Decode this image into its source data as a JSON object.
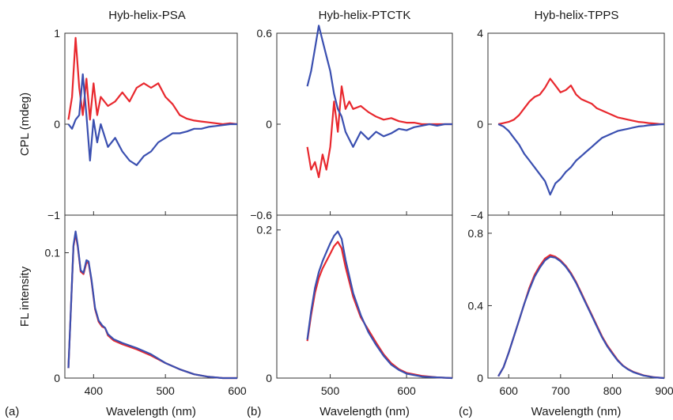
{
  "chart_data": [
    {
      "id": "a",
      "panel_label": "(a)",
      "type": "line",
      "title": "Hyb-helix-PSA",
      "xlabel": "Wavelength (nm)",
      "xlim": [
        360,
        600
      ],
      "xticks": [
        400,
        500,
        600
      ],
      "top": {
        "ylabel": "CPL (mdeg)",
        "ylim": [
          -1,
          1
        ],
        "yticks": [
          {
            "v": 1,
            "t": "1"
          },
          {
            "v": 0,
            "t": "0"
          },
          {
            "v": -1,
            "t": "−1"
          }
        ],
        "series": [
          {
            "color": "#e8282e",
            "x": [
              365,
              370,
              375,
              380,
              385,
              390,
              395,
              400,
              405,
              410,
              420,
              430,
              440,
              450,
              460,
              470,
              480,
              490,
              500,
              510,
              520,
              530,
              540,
              550,
              560,
              570,
              580,
              590,
              600
            ],
            "y": [
              0.05,
              0.3,
              0.95,
              0.4,
              0.1,
              0.5,
              0.05,
              0.45,
              0.1,
              0.3,
              0.2,
              0.25,
              0.35,
              0.25,
              0.4,
              0.45,
              0.4,
              0.45,
              0.3,
              0.22,
              0.1,
              0.06,
              0.04,
              0.03,
              0.02,
              0.01,
              0.0,
              0.01,
              0.0
            ]
          },
          {
            "color": "#3a4fb0",
            "x": [
              365,
              370,
              375,
              380,
              385,
              390,
              395,
              400,
              405,
              410,
              420,
              430,
              440,
              450,
              460,
              470,
              480,
              490,
              500,
              510,
              520,
              530,
              540,
              550,
              560,
              570,
              580,
              590,
              600
            ],
            "y": [
              0.0,
              -0.05,
              0.05,
              0.1,
              0.55,
              0.1,
              -0.4,
              0.05,
              -0.2,
              0.0,
              -0.25,
              -0.15,
              -0.3,
              -0.4,
              -0.45,
              -0.35,
              -0.3,
              -0.2,
              -0.15,
              -0.1,
              -0.1,
              -0.08,
              -0.05,
              -0.05,
              -0.03,
              -0.02,
              -0.01,
              0.0,
              0.0
            ]
          }
        ]
      },
      "bottom": {
        "ylabel": "FL intensity",
        "ylim": [
          0,
          0.13
        ],
        "yticks": [
          {
            "v": 0.1,
            "t": "0.1"
          },
          {
            "v": 0,
            "t": "0"
          }
        ],
        "series": [
          {
            "color": "#e8282e",
            "x": [
              365,
              368,
              372,
              375,
              378,
              382,
              386,
              390,
              393,
              397,
              402,
              407,
              412,
              416,
              420,
              428,
              440,
              460,
              480,
              500,
              520,
              540,
              560,
              580,
              600
            ],
            "y": [
              0.008,
              0.05,
              0.105,
              0.115,
              0.105,
              0.085,
              0.083,
              0.092,
              0.092,
              0.078,
              0.055,
              0.045,
              0.041,
              0.04,
              0.034,
              0.03,
              0.027,
              0.023,
              0.018,
              0.012,
              0.007,
              0.003,
              0.001,
              0.0,
              0.0
            ]
          },
          {
            "color": "#3a4fb0",
            "x": [
              365,
              368,
              372,
              375,
              378,
              382,
              386,
              390,
              393,
              397,
              402,
              407,
              412,
              416,
              420,
              428,
              440,
              460,
              480,
              500,
              520,
              540,
              560,
              580,
              600
            ],
            "y": [
              0.008,
              0.05,
              0.106,
              0.117,
              0.106,
              0.086,
              0.084,
              0.094,
              0.093,
              0.079,
              0.056,
              0.046,
              0.042,
              0.04,
              0.035,
              0.031,
              0.028,
              0.024,
              0.019,
              0.012,
              0.007,
              0.003,
              0.001,
              0.0,
              0.0
            ]
          }
        ]
      }
    },
    {
      "id": "b",
      "panel_label": "(b)",
      "type": "line",
      "title": "Hyb-helix-PTCTK",
      "xlabel": "Wavelength (nm)",
      "xlim": [
        430,
        660
      ],
      "xticks": [
        500,
        600
      ],
      "top": {
        "ylabel": "",
        "ylim": [
          -0.6,
          0.6
        ],
        "yticks": [
          {
            "v": 0.6,
            "t": "0.6"
          },
          {
            "v": 0,
            "t": "0"
          },
          {
            "v": -0.6,
            "t": "−0.6"
          }
        ],
        "series": [
          {
            "color": "#e8282e",
            "x": [
              470,
              475,
              480,
              485,
              490,
              495,
              500,
              505,
              510,
              515,
              520,
              525,
              530,
              540,
              550,
              560,
              570,
              580,
              590,
              600,
              610,
              620,
              630,
              640,
              650,
              660
            ],
            "y": [
              -0.15,
              -0.3,
              -0.25,
              -0.35,
              -0.2,
              -0.3,
              -0.15,
              0.15,
              -0.05,
              0.25,
              0.1,
              0.15,
              0.1,
              0.12,
              0.08,
              0.05,
              0.03,
              0.04,
              0.02,
              0.01,
              0.01,
              0.0,
              0.0,
              0.0,
              0.0,
              0.0
            ]
          },
          {
            "color": "#3a4fb0",
            "x": [
              470,
              475,
              480,
              485,
              490,
              495,
              500,
              505,
              510,
              515,
              520,
              525,
              530,
              540,
              550,
              560,
              570,
              580,
              590,
              600,
              610,
              620,
              630,
              640,
              650,
              660
            ],
            "y": [
              0.25,
              0.35,
              0.5,
              0.65,
              0.55,
              0.45,
              0.35,
              0.2,
              0.1,
              0.05,
              -0.05,
              -0.1,
              -0.15,
              -0.05,
              -0.1,
              -0.05,
              -0.08,
              -0.06,
              -0.03,
              -0.04,
              -0.02,
              -0.01,
              0.0,
              -0.01,
              0.0,
              0.0
            ]
          }
        ]
      },
      "bottom": {
        "ylabel": "",
        "ylim": [
          0,
          0.22
        ],
        "yticks": [
          {
            "v": 0.2,
            "t": "0.2"
          },
          {
            "v": 0,
            "t": "0"
          }
        ],
        "series": [
          {
            "color": "#e8282e",
            "x": [
              470,
              475,
              480,
              485,
              490,
              495,
              500,
              505,
              510,
              515,
              520,
              530,
              540,
              550,
              560,
              570,
              580,
              590,
              600,
              620,
              640,
              660
            ],
            "y": [
              0.05,
              0.085,
              0.115,
              0.135,
              0.148,
              0.158,
              0.168,
              0.178,
              0.184,
              0.175,
              0.15,
              0.11,
              0.082,
              0.065,
              0.048,
              0.032,
              0.02,
              0.012,
              0.007,
              0.003,
              0.001,
              0.0
            ]
          },
          {
            "color": "#3a4fb0",
            "x": [
              470,
              475,
              480,
              485,
              490,
              495,
              500,
              505,
              510,
              515,
              520,
              530,
              540,
              550,
              560,
              570,
              580,
              590,
              600,
              620,
              640,
              660
            ],
            "y": [
              0.052,
              0.09,
              0.122,
              0.143,
              0.158,
              0.17,
              0.182,
              0.192,
              0.198,
              0.188,
              0.16,
              0.115,
              0.085,
              0.062,
              0.045,
              0.03,
              0.018,
              0.011,
              0.006,
              0.002,
              0.001,
              0.0
            ]
          }
        ]
      }
    },
    {
      "id": "c",
      "panel_label": "(c)",
      "type": "line",
      "title": "Hyb-helix-TPPS",
      "xlabel": "Wavelength (nm)",
      "xlim": [
        560,
        900
      ],
      "xticks": [
        600,
        700,
        800,
        900
      ],
      "top": {
        "ylabel": "",
        "ylim": [
          -4,
          4
        ],
        "yticks": [
          {
            "v": 4,
            "t": "4"
          },
          {
            "v": 0,
            "t": "0"
          },
          {
            "v": -4,
            "t": "−4"
          }
        ],
        "series": [
          {
            "color": "#e8282e",
            "x": [
              580,
              590,
              600,
              610,
              620,
              630,
              640,
              650,
              660,
              670,
              680,
              690,
              700,
              710,
              720,
              730,
              740,
              750,
              760,
              770,
              780,
              790,
              800,
              810,
              820,
              830,
              840,
              850,
              860,
              870,
              880,
              890,
              900
            ],
            "y": [
              0.0,
              0.05,
              0.1,
              0.2,
              0.4,
              0.7,
              1.0,
              1.2,
              1.3,
              1.6,
              2.0,
              1.7,
              1.4,
              1.5,
              1.7,
              1.3,
              1.1,
              1.0,
              0.9,
              0.7,
              0.6,
              0.5,
              0.4,
              0.3,
              0.25,
              0.2,
              0.15,
              0.1,
              0.08,
              0.05,
              0.03,
              0.01,
              0.0
            ]
          },
          {
            "color": "#3a4fb0",
            "x": [
              580,
              590,
              600,
              610,
              620,
              630,
              640,
              650,
              660,
              670,
              680,
              690,
              700,
              710,
              720,
              730,
              740,
              750,
              760,
              770,
              780,
              790,
              800,
              810,
              820,
              830,
              840,
              850,
              860,
              870,
              880,
              890,
              900
            ],
            "y": [
              0.0,
              -0.1,
              -0.3,
              -0.6,
              -0.9,
              -1.3,
              -1.6,
              -1.9,
              -2.2,
              -2.5,
              -3.1,
              -2.6,
              -2.4,
              -2.1,
              -1.9,
              -1.6,
              -1.4,
              -1.2,
              -1.0,
              -0.8,
              -0.6,
              -0.5,
              -0.4,
              -0.3,
              -0.25,
              -0.2,
              -0.15,
              -0.1,
              -0.08,
              -0.05,
              -0.03,
              -0.01,
              0.0
            ]
          }
        ]
      },
      "bottom": {
        "ylabel": "",
        "ylim": [
          0,
          0.9
        ],
        "yticks": [
          {
            "v": 0.8,
            "t": "0.8"
          },
          {
            "v": 0.4,
            "t": "0.4"
          },
          {
            "v": 0,
            "t": "0"
          }
        ],
        "series": [
          {
            "color": "#e8282e",
            "x": [
              580,
              590,
              600,
              610,
              620,
              630,
              640,
              650,
              660,
              670,
              680,
              690,
              700,
              710,
              720,
              730,
              740,
              750,
              760,
              770,
              780,
              790,
              800,
              810,
              820,
              830,
              840,
              850,
              860,
              870,
              880,
              890,
              900
            ],
            "y": [
              0.01,
              0.06,
              0.14,
              0.23,
              0.32,
              0.41,
              0.5,
              0.57,
              0.62,
              0.66,
              0.68,
              0.67,
              0.65,
              0.62,
              0.58,
              0.53,
              0.47,
              0.41,
              0.35,
              0.29,
              0.23,
              0.18,
              0.14,
              0.1,
              0.07,
              0.05,
              0.035,
              0.025,
              0.015,
              0.01,
              0.005,
              0.002,
              0.0
            ]
          },
          {
            "color": "#3a4fb0",
            "x": [
              580,
              590,
              600,
              610,
              620,
              630,
              640,
              650,
              660,
              670,
              680,
              690,
              700,
              710,
              720,
              730,
              740,
              750,
              760,
              770,
              780,
              790,
              800,
              810,
              820,
              830,
              840,
              850,
              860,
              870,
              880,
              890,
              900
            ],
            "y": [
              0.01,
              0.06,
              0.14,
              0.23,
              0.32,
              0.41,
              0.49,
              0.56,
              0.61,
              0.65,
              0.67,
              0.665,
              0.645,
              0.615,
              0.575,
              0.525,
              0.465,
              0.405,
              0.345,
              0.285,
              0.225,
              0.175,
              0.135,
              0.097,
              0.068,
              0.048,
              0.033,
              0.023,
              0.014,
              0.009,
              0.004,
              0.002,
              0.0
            ]
          }
        ]
      }
    }
  ]
}
